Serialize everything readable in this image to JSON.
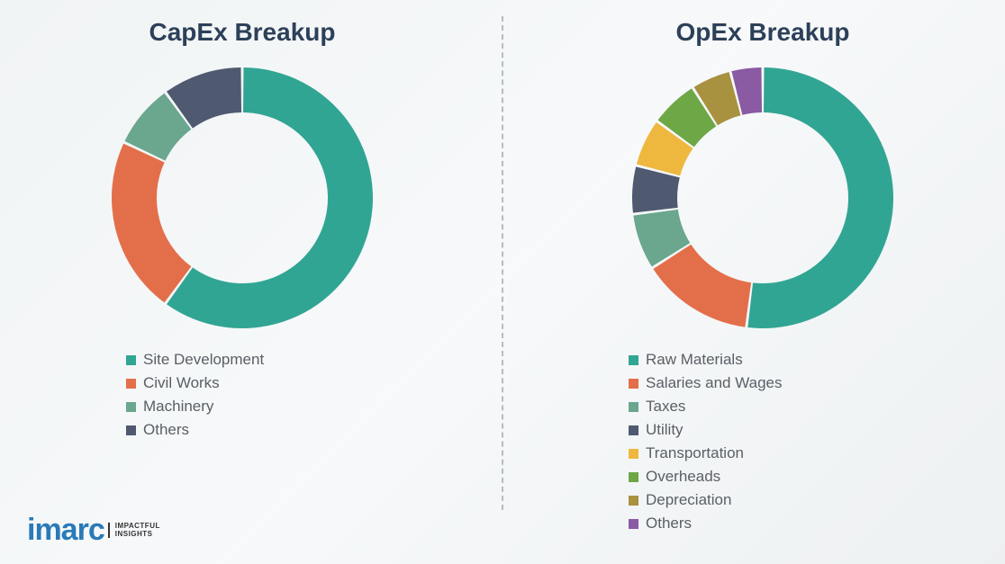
{
  "background_color": "#f5f7f8",
  "divider_color": "#b8bcc0",
  "title_color": "#2d4059",
  "title_fontsize": 28,
  "legend_fontsize": 17,
  "legend_text_color": "#5a5f66",
  "donut": {
    "outer_radius": 145,
    "inner_radius": 95,
    "gap_deg": 1.2,
    "start_angle_deg": -90
  },
  "capex": {
    "title": "CapEx Breakup",
    "type": "donut",
    "slices": [
      {
        "label": "Site Development",
        "value": 60,
        "color": "#31a593"
      },
      {
        "label": "Civil Works",
        "value": 22,
        "color": "#e36f4a"
      },
      {
        "label": "Machinery",
        "value": 8,
        "color": "#6aa78e"
      },
      {
        "label": "Others",
        "value": 10,
        "color": "#4f5a70"
      }
    ]
  },
  "opex": {
    "title": "OpEx Breakup",
    "type": "donut",
    "slices": [
      {
        "label": "Raw Materials",
        "value": 52,
        "color": "#31a593"
      },
      {
        "label": "Salaries and Wages",
        "value": 14,
        "color": "#e36f4a"
      },
      {
        "label": "Taxes",
        "value": 7,
        "color": "#6aa78e"
      },
      {
        "label": "Utility",
        "value": 6,
        "color": "#4f5a70"
      },
      {
        "label": "Transportation",
        "value": 6,
        "color": "#eeb83f"
      },
      {
        "label": "Overheads",
        "value": 6,
        "color": "#6ea746"
      },
      {
        "label": "Depreciation",
        "value": 5,
        "color": "#a8913f"
      },
      {
        "label": "Others",
        "value": 4,
        "color": "#8a5aa3"
      }
    ]
  },
  "logo": {
    "mark": "imarc",
    "tagline_line1": "IMPACTFUL",
    "tagline_line2": "INSIGHTS",
    "mark_color": "#2a7ab8"
  }
}
